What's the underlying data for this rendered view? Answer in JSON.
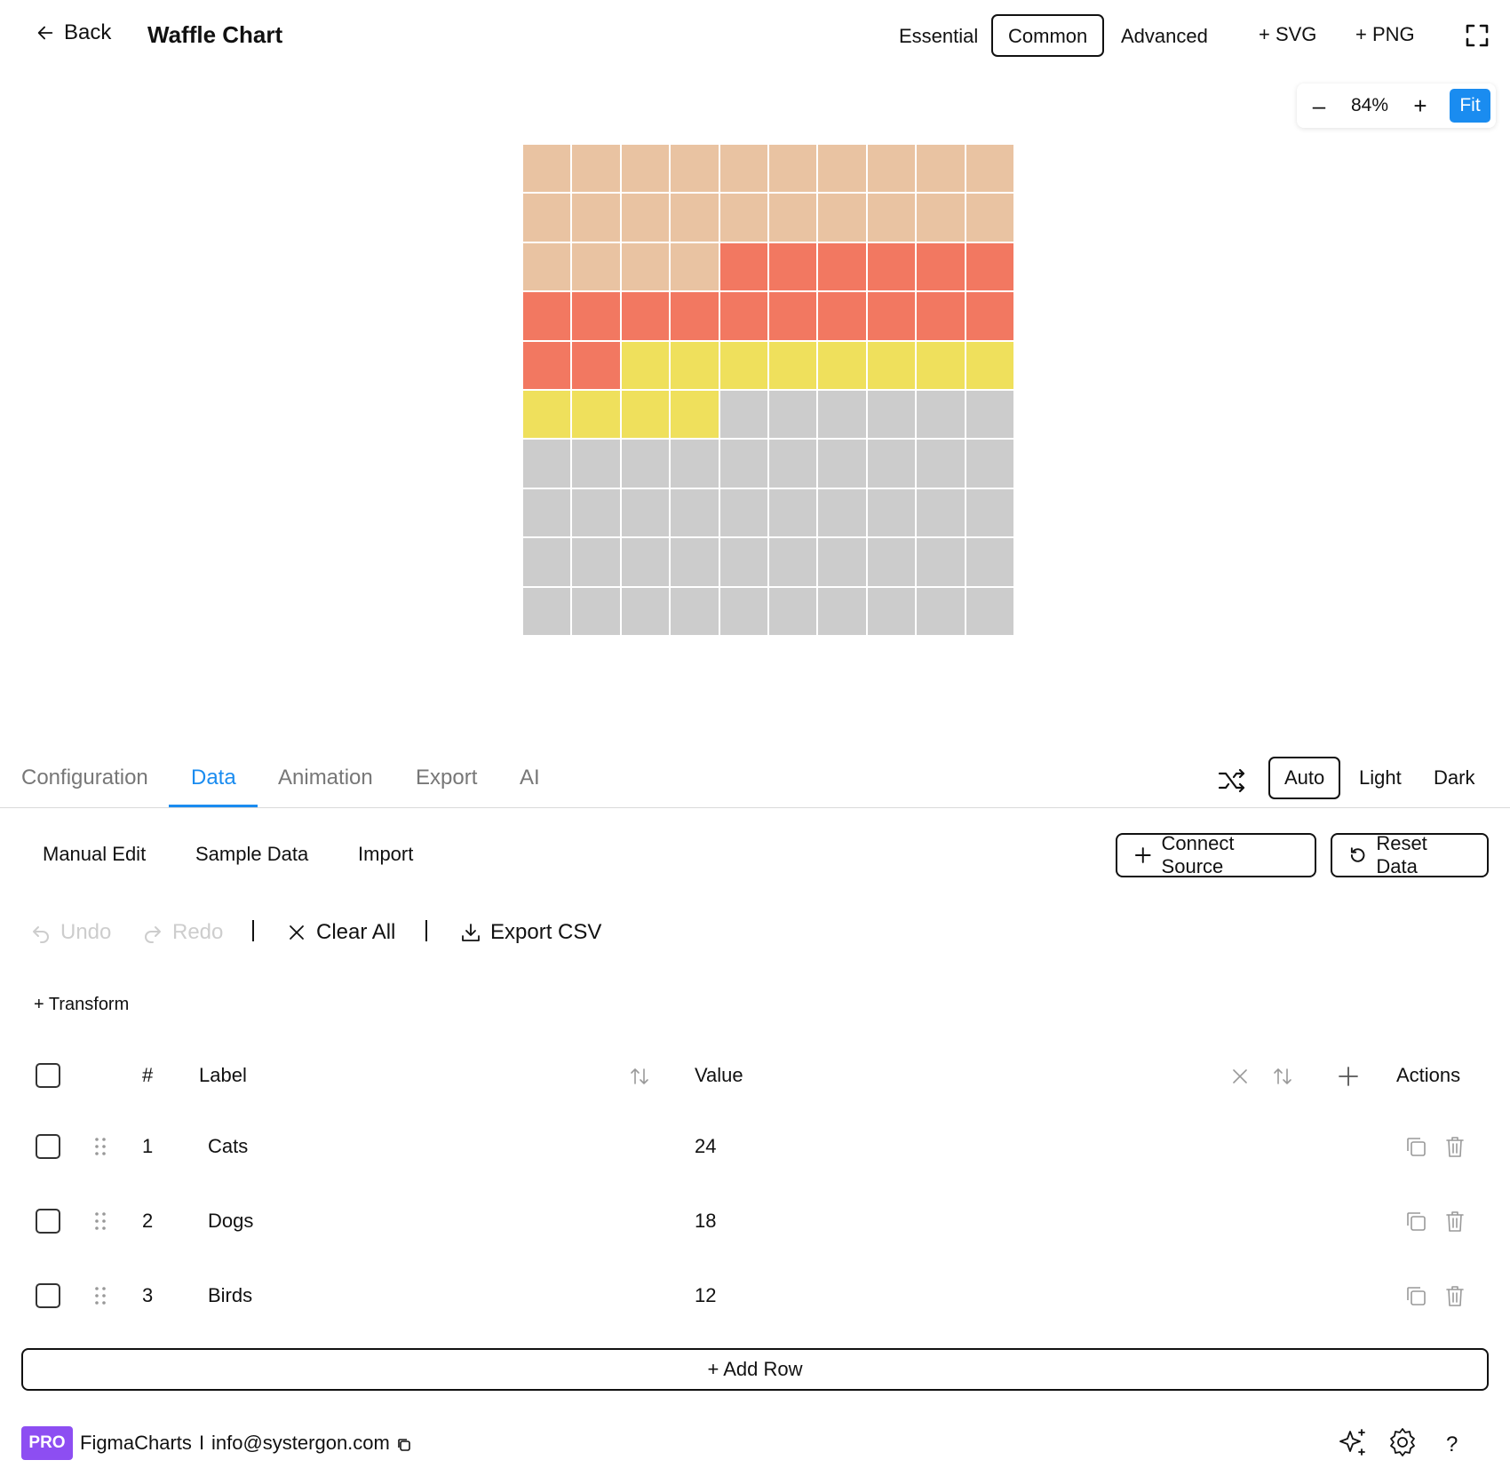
{
  "header": {
    "back_label": "Back",
    "title": "Waffle Chart",
    "tiers": [
      "Essential",
      "Common",
      "Advanced"
    ],
    "active_tier": "Common",
    "svg_label": "+ SVG",
    "png_label": "+ PNG"
  },
  "zoom": {
    "minus": "–",
    "value": "84%",
    "plus": "+",
    "fit": "Fit"
  },
  "chart_data": {
    "type": "waffle",
    "grid": [
      10,
      10
    ],
    "categories": [
      "Cats",
      "Dogs",
      "Birds"
    ],
    "values": [
      24,
      18,
      12
    ],
    "total_cells": 100,
    "colors": [
      "#e9c3a2",
      "#f27861",
      "#efe05c"
    ],
    "empty_color": "#cccccc",
    "fill_order": "row-major from top-left"
  },
  "tabs": {
    "items": [
      "Configuration",
      "Data",
      "Animation",
      "Export",
      "AI"
    ],
    "active": "Data",
    "themes": [
      "Auto",
      "Light",
      "Dark"
    ],
    "active_theme": "Auto"
  },
  "data_panel": {
    "subtabs": [
      "Manual Edit",
      "Sample Data",
      "Import"
    ],
    "connect_source": "Connect Source",
    "reset_data": "Reset Data",
    "undo": "Undo",
    "redo": "Redo",
    "separator": "I",
    "clear_all": "Clear All",
    "export_csv": "Export CSV",
    "transform": "+ Transform"
  },
  "table": {
    "headers": {
      "index": "#",
      "label": "Label",
      "value": "Value",
      "actions": "Actions"
    },
    "rows": [
      {
        "index": "1",
        "label": "Cats",
        "value": "24"
      },
      {
        "index": "2",
        "label": "Dogs",
        "value": "18"
      },
      {
        "index": "3",
        "label": "Birds",
        "value": "12"
      }
    ],
    "add_row": "+ Add Row"
  },
  "footer": {
    "badge": "PRO",
    "brand": "FigmaCharts",
    "separator": "I",
    "email": "info@systergon.com",
    "help": "?"
  },
  "colors": {
    "accent": "#1a8cf0",
    "pro": "#8d4ef2"
  }
}
